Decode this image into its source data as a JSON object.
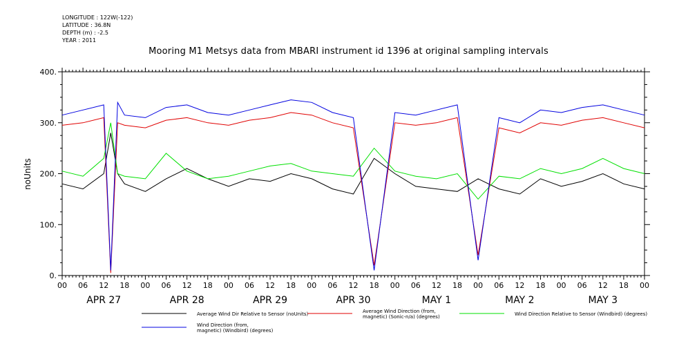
{
  "meta": {
    "longitude": "LONGITUDE : 122W(-122)",
    "latitude": "LATITUDE : 36.8N",
    "depth": "DEPTH (m) : -2.5",
    "year": "YEAR : 2011"
  },
  "chart_data": {
    "type": "line",
    "title": "Mooring M1 Metsys data from MBARI instrument id 1396 at original sampling intervals",
    "ylabel": "noUnits",
    "xlabel": "",
    "ylim": [
      0,
      400
    ],
    "xlim_hours": [
      0,
      168
    ],
    "y_ticks": [
      "0.",
      "100.",
      "200.",
      "300.",
      "400."
    ],
    "y_tick_values": [
      0,
      100,
      200,
      300,
      400
    ],
    "x_tick_labels": [
      "00",
      "06",
      "12",
      "18",
      "00",
      "06",
      "12",
      "18",
      "00",
      "06",
      "12",
      "18",
      "00",
      "06",
      "12",
      "18",
      "00",
      "06",
      "12",
      "18",
      "00",
      "06",
      "12",
      "18",
      "00",
      "06",
      "12",
      "18",
      "00"
    ],
    "day_labels": [
      "APR 27",
      "APR 28",
      "APR 29",
      "APR 30",
      "MAY  1",
      "MAY  2",
      "MAY  3"
    ],
    "grid": false,
    "legend_position": "bottom",
    "series": [
      {
        "name": "Average Wind Dir Relative to Sensor (noUnits)",
        "color": "#000000",
        "x": [
          0,
          6,
          12,
          14,
          16,
          18,
          24,
          30,
          36,
          42,
          48,
          54,
          60,
          66,
          72,
          78,
          84,
          90,
          96,
          102,
          108,
          114,
          120,
          126,
          132,
          138,
          144,
          150,
          156,
          162,
          168
        ],
        "y": [
          180,
          170,
          200,
          280,
          200,
          180,
          165,
          190,
          210,
          190,
          175,
          190,
          185,
          200,
          190,
          170,
          160,
          230,
          200,
          175,
          170,
          165,
          190,
          170,
          160,
          190,
          175,
          185,
          200,
          180,
          170
        ]
      },
      {
        "name": "Average Wind Direction (from, magnetic) (Sonic-n/a) (degrees)",
        "color": "#e00000",
        "x": [
          0,
          6,
          12,
          14,
          16,
          18,
          24,
          30,
          36,
          42,
          48,
          54,
          60,
          66,
          72,
          78,
          84,
          90,
          96,
          102,
          108,
          114,
          120,
          126,
          132,
          138,
          144,
          150,
          156,
          162,
          168
        ],
        "y": [
          295,
          300,
          310,
          5,
          300,
          295,
          290,
          305,
          310,
          300,
          295,
          305,
          310,
          320,
          315,
          300,
          290,
          20,
          300,
          295,
          300,
          310,
          40,
          290,
          280,
          300,
          295,
          305,
          310,
          300,
          290
        ]
      },
      {
        "name": "Wind Direction Relative to Sensor (Windbird) (degrees)",
        "color": "#00e000",
        "x": [
          0,
          6,
          12,
          14,
          16,
          18,
          24,
          30,
          36,
          42,
          48,
          54,
          60,
          66,
          72,
          78,
          84,
          90,
          96,
          102,
          108,
          114,
          120,
          126,
          132,
          138,
          144,
          150,
          156,
          162,
          168
        ],
        "y": [
          205,
          195,
          230,
          300,
          200,
          195,
          190,
          240,
          205,
          190,
          195,
          205,
          215,
          220,
          205,
          200,
          195,
          250,
          205,
          195,
          190,
          200,
          150,
          195,
          190,
          210,
          200,
          210,
          230,
          210,
          200
        ]
      },
      {
        "name": "Wind Direction (from, magnetic) (Windbird) (degrees)",
        "color": "#0000e0",
        "x": [
          0,
          6,
          12,
          14,
          16,
          18,
          24,
          30,
          36,
          42,
          48,
          54,
          60,
          66,
          72,
          78,
          84,
          90,
          96,
          102,
          108,
          114,
          120,
          126,
          132,
          138,
          144,
          150,
          156,
          162,
          168
        ],
        "y": [
          315,
          325,
          335,
          10,
          340,
          315,
          310,
          330,
          335,
          320,
          315,
          325,
          335,
          345,
          340,
          320,
          310,
          10,
          320,
          315,
          325,
          335,
          30,
          310,
          300,
          325,
          320,
          330,
          335,
          325,
          315
        ]
      }
    ]
  }
}
